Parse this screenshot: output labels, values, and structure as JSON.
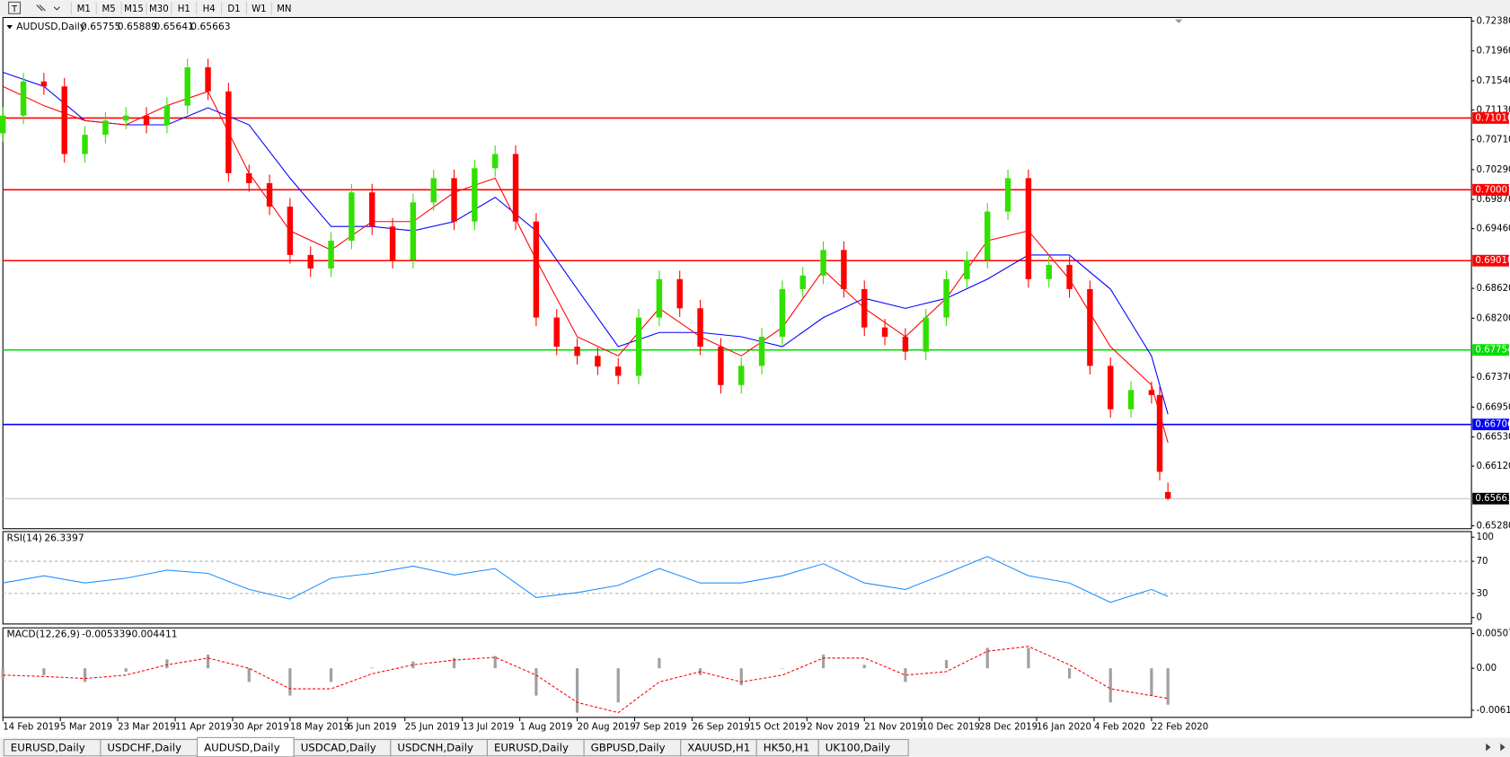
{
  "toolbar": {
    "timeframes": [
      "M1",
      "M5",
      "M15",
      "M30",
      "H1",
      "H4",
      "D1",
      "W1",
      "MN"
    ]
  },
  "chart_data": [
    {
      "type": "candlestick",
      "title": "AUDUSD,Daily",
      "x": [
        0,
        5,
        10,
        15,
        20,
        25,
        30,
        35,
        40,
        45,
        50,
        55,
        60,
        65,
        70,
        75,
        80,
        85,
        90,
        95,
        100,
        105,
        110,
        115,
        120,
        125,
        130,
        135,
        140,
        145,
        150,
        155,
        160,
        165,
        170,
        175,
        180,
        185,
        190,
        195,
        200,
        205,
        210,
        215,
        220,
        225,
        230,
        235,
        240,
        245,
        250,
        255,
        260,
        265,
        270,
        275,
        280,
        282,
        284
      ],
      "open": [
        0.708,
        0.7105,
        0.7153,
        0.7146,
        0.7051,
        0.7078,
        0.7098,
        0.7105,
        0.7092,
        0.7119,
        0.7173,
        0.7139,
        0.7024,
        0.701,
        0.6977,
        0.6909,
        0.689,
        0.6929,
        0.6997,
        0.6949,
        0.6902,
        0.6983,
        0.7017,
        0.6956,
        0.7031,
        0.7051,
        0.6956,
        0.6821,
        0.678,
        0.6767,
        0.6752,
        0.6739,
        0.6821,
        0.6875,
        0.6834,
        0.678,
        0.6726,
        0.6753,
        0.6794,
        0.6861,
        0.688,
        0.6916,
        0.6861,
        0.6807,
        0.6794,
        0.6773,
        0.6821,
        0.6875,
        0.6902,
        0.697,
        0.7017,
        0.6875,
        0.6895,
        0.6861,
        0.6753,
        0.6692,
        0.6719,
        0.6712,
        0.65755
      ],
      "high": [
        0.7117,
        0.7165,
        0.7165,
        0.7158,
        0.709,
        0.711,
        0.7117,
        0.7117,
        0.7131,
        0.7185,
        0.7185,
        0.7151,
        0.7036,
        0.7022,
        0.6989,
        0.6921,
        0.6941,
        0.7009,
        0.7009,
        0.6961,
        0.6995,
        0.7029,
        0.7029,
        0.7043,
        0.7063,
        0.7063,
        0.6968,
        0.6833,
        0.6792,
        0.6779,
        0.6764,
        0.6833,
        0.6887,
        0.6887,
        0.6846,
        0.6792,
        0.6765,
        0.6806,
        0.6873,
        0.6892,
        0.6928,
        0.6928,
        0.6873,
        0.6819,
        0.6806,
        0.6833,
        0.6887,
        0.6914,
        0.6982,
        0.7029,
        0.7029,
        0.6907,
        0.6907,
        0.6873,
        0.6765,
        0.6731,
        0.6731,
        0.6724,
        0.65889
      ],
      "low": [
        0.7068,
        0.7093,
        0.7134,
        0.7039,
        0.7039,
        0.7066,
        0.7086,
        0.708,
        0.708,
        0.7107,
        0.7127,
        0.7012,
        0.6998,
        0.6965,
        0.6897,
        0.6878,
        0.6878,
        0.6917,
        0.6937,
        0.689,
        0.689,
        0.6971,
        0.6944,
        0.6944,
        0.7019,
        0.6944,
        0.6809,
        0.6768,
        0.6755,
        0.674,
        0.6727,
        0.6727,
        0.6809,
        0.6822,
        0.6768,
        0.6714,
        0.6714,
        0.6741,
        0.6782,
        0.6849,
        0.6868,
        0.6849,
        0.6795,
        0.6782,
        0.6761,
        0.6761,
        0.6809,
        0.6863,
        0.689,
        0.6958,
        0.6863,
        0.6863,
        0.6849,
        0.6741,
        0.668,
        0.668,
        0.67,
        0.6592,
        0.65641
      ],
      "close": [
        0.7105,
        0.7153,
        0.7146,
        0.7051,
        0.7078,
        0.7098,
        0.7105,
        0.7092,
        0.7119,
        0.7173,
        0.7139,
        0.7024,
        0.701,
        0.6977,
        0.6909,
        0.689,
        0.6929,
        0.6997,
        0.6949,
        0.6902,
        0.6983,
        0.7017,
        0.6956,
        0.7031,
        0.7051,
        0.6956,
        0.6821,
        0.678,
        0.6767,
        0.6752,
        0.6739,
        0.6821,
        0.6875,
        0.6834,
        0.678,
        0.6726,
        0.6753,
        0.6794,
        0.6861,
        0.688,
        0.6916,
        0.6861,
        0.6807,
        0.6794,
        0.6773,
        0.6821,
        0.6875,
        0.6902,
        0.697,
        0.7017,
        0.6875,
        0.6895,
        0.6861,
        0.6753,
        0.6692,
        0.6719,
        0.6712,
        0.6604,
        0.65663
      ],
      "up_color": "#32e000",
      "down_color": "#ff0000",
      "moving_averages": [
        {
          "color": "#0000ff",
          "x": [
            0,
            10,
            20,
            30,
            40,
            50,
            60,
            70,
            80,
            90,
            100,
            110,
            120,
            130,
            140,
            150,
            160,
            170,
            180,
            190,
            200,
            210,
            220,
            230,
            240,
            250,
            260,
            270,
            280,
            284
          ],
          "values": [
            0.7166,
            0.7146,
            0.7098,
            0.7092,
            0.7092,
            0.7116,
            0.7092,
            0.7017,
            0.6949,
            0.6949,
            0.6943,
            0.6956,
            0.699,
            0.6943,
            0.6861,
            0.678,
            0.68,
            0.68,
            0.6794,
            0.678,
            0.6821,
            0.6848,
            0.6834,
            0.6848,
            0.6875,
            0.6909,
            0.6909,
            0.6861,
            0.6767,
            0.6685
          ]
        },
        {
          "color": "#ff0000",
          "x": [
            0,
            10,
            20,
            30,
            40,
            50,
            60,
            70,
            80,
            90,
            100,
            110,
            120,
            130,
            140,
            150,
            160,
            170,
            180,
            190,
            200,
            210,
            220,
            230,
            240,
            250,
            260,
            270,
            280,
            284
          ],
          "values": [
            0.7146,
            0.7119,
            0.7098,
            0.7092,
            0.7119,
            0.7139,
            0.7024,
            0.6943,
            0.6916,
            0.6956,
            0.6956,
            0.6997,
            0.7017,
            0.6902,
            0.6794,
            0.6767,
            0.6834,
            0.6794,
            0.6767,
            0.6807,
            0.6888,
            0.6834,
            0.6794,
            0.6848,
            0.6929,
            0.6943,
            0.6875,
            0.678,
            0.6726,
            0.6645
          ]
        }
      ],
      "levels": [
        {
          "value": 0.71016,
          "label": "0.71016",
          "color": "#ff0000"
        },
        {
          "value": 0.70007,
          "label": "0.70007",
          "color": "#ff0000"
        },
        {
          "value": 0.6901,
          "label": "0.69010",
          "color": "#ff0000"
        },
        {
          "value": 0.67754,
          "label": "0.67754",
          "color": "#00e000"
        },
        {
          "value": 0.66706,
          "label": "0.66706",
          "color": "#0000ff"
        }
      ],
      "xlim": [
        0,
        358
      ],
      "ylim": [
        0.6524,
        0.7243
      ],
      "yticks": [
        {
          "value": 0.7238,
          "label": "0.72380"
        },
        {
          "value": 0.7196,
          "label": "0.71960"
        },
        {
          "value": 0.7154,
          "label": "0.71540"
        },
        {
          "value": 0.7113,
          "label": "0.71130"
        },
        {
          "value": 0.7071,
          "label": "0.70710"
        },
        {
          "value": 0.7029,
          "label": "0.70290"
        },
        {
          "value": 0.6987,
          "label": "0.69870"
        },
        {
          "value": 0.6946,
          "label": "0.69460"
        },
        {
          "value": 0.6862,
          "label": "0.68620"
        },
        {
          "value": 0.682,
          "label": "0.68200"
        },
        {
          "value": 0.6737,
          "label": "0.67370"
        },
        {
          "value": 0.6695,
          "label": "0.66950"
        },
        {
          "value": 0.6653,
          "label": "0.66530"
        },
        {
          "value": 0.6612,
          "label": "0.66120"
        },
        {
          "value": 0.6528,
          "label": "0.65280"
        }
      ],
      "xticks": [
        {
          "value": 0,
          "label": "14 Feb 2019"
        },
        {
          "value": 14,
          "label": "5 Mar 2019"
        },
        {
          "value": 28,
          "label": "23 Mar 2019"
        },
        {
          "value": 42,
          "label": "11 Apr 2019"
        },
        {
          "value": 56,
          "label": "30 Apr 2019"
        },
        {
          "value": 70,
          "label": "18 May 2019"
        },
        {
          "value": 84,
          "label": "6 Jun 2019"
        },
        {
          "value": 98,
          "label": "25 Jun 2019"
        },
        {
          "value": 112,
          "label": "13 Jul 2019"
        },
        {
          "value": 126,
          "label": "1 Aug 2019"
        },
        {
          "value": 140,
          "label": "20 Aug 2019"
        },
        {
          "value": 154,
          "label": "7 Sep 2019"
        },
        {
          "value": 168,
          "label": "26 Sep 2019"
        },
        {
          "value": 182,
          "label": "15 Oct 2019"
        },
        {
          "value": 196,
          "label": "2 Nov 2019"
        },
        {
          "value": 210,
          "label": "21 Nov 2019"
        },
        {
          "value": 224,
          "label": "10 Dec 2019"
        },
        {
          "value": 238,
          "label": "28 Dec 2019"
        },
        {
          "value": 252,
          "label": "16 Jan 2020"
        },
        {
          "value": 266,
          "label": "4 Feb 2020"
        },
        {
          "value": 280,
          "label": "22 Feb 2020"
        }
      ]
    },
    {
      "type": "line",
      "title": "RSI(14)",
      "color": "#1e90ff",
      "x": [
        0,
        10,
        20,
        30,
        40,
        50,
        60,
        70,
        80,
        90,
        100,
        110,
        120,
        130,
        140,
        150,
        160,
        170,
        180,
        190,
        200,
        210,
        220,
        230,
        240,
        250,
        260,
        270,
        280,
        284
      ],
      "values": [
        43,
        52,
        43,
        49,
        59,
        55,
        35,
        23,
        49,
        55,
        64,
        53,
        61,
        25,
        31,
        40,
        61,
        43,
        43,
        52,
        67,
        43,
        35,
        55,
        76,
        52,
        43,
        19,
        35,
        26.3397
      ],
      "xlim": [
        0,
        358
      ],
      "ylim": [
        -8,
        107
      ],
      "yticks": [
        100,
        70,
        30,
        0
      ],
      "levels": [
        70,
        30
      ]
    },
    {
      "type": "macd",
      "title": "MACD(12,26,9)",
      "histogram_color": "#a0a0a0",
      "signal_color": "#ff0000",
      "x": [
        0,
        10,
        20,
        30,
        40,
        50,
        60,
        70,
        80,
        90,
        100,
        110,
        120,
        130,
        140,
        150,
        160,
        170,
        180,
        190,
        200,
        210,
        220,
        230,
        240,
        250,
        260,
        270,
        280,
        284
      ],
      "histogram": [
        -0.0016,
        -0.001,
        -0.002,
        -0.0005,
        0.0013,
        0.002,
        -0.002,
        -0.004,
        -0.002,
        0.0001,
        0.001,
        0.0015,
        0.0018,
        -0.004,
        -0.0065,
        -0.005,
        0.0015,
        -0.001,
        -0.0025,
        0,
        0.002,
        0.0005,
        -0.002,
        0.0012,
        0.003,
        0.003,
        -0.0015,
        -0.005,
        -0.004,
        -0.005339
      ],
      "signal": [
        -0.001,
        -0.0012,
        -0.0015,
        -0.001,
        0.0005,
        0.0015,
        0.0,
        -0.003,
        -0.003,
        -0.0008,
        0.0005,
        0.0012,
        0.0016,
        -0.001,
        -0.005,
        -0.0065,
        -0.002,
        -0.0005,
        -0.002,
        -0.001,
        0.0015,
        0.0015,
        -0.001,
        -0.0005,
        0.0025,
        0.0032,
        0.0005,
        -0.003,
        -0.004,
        -0.004411
      ],
      "xlim": [
        0,
        358
      ],
      "ylim": [
        -0.00719,
        0.00592
      ],
      "yticks": [
        0.005076,
        {
          "value": 0,
          "label": "0.00"
        },
        -0.006148
      ]
    }
  ],
  "tabs": {
    "items": [
      "EURUSD,Daily",
      "USDCHF,Daily",
      "AUDUSD,Daily",
      "USDCAD,Daily",
      "USDCNH,Daily",
      "EURUSD,Daily",
      "GBPUSD,Daily",
      "XAUUSD,H1",
      "HK50,H1",
      "UK100,Daily"
    ],
    "active": 2
  }
}
